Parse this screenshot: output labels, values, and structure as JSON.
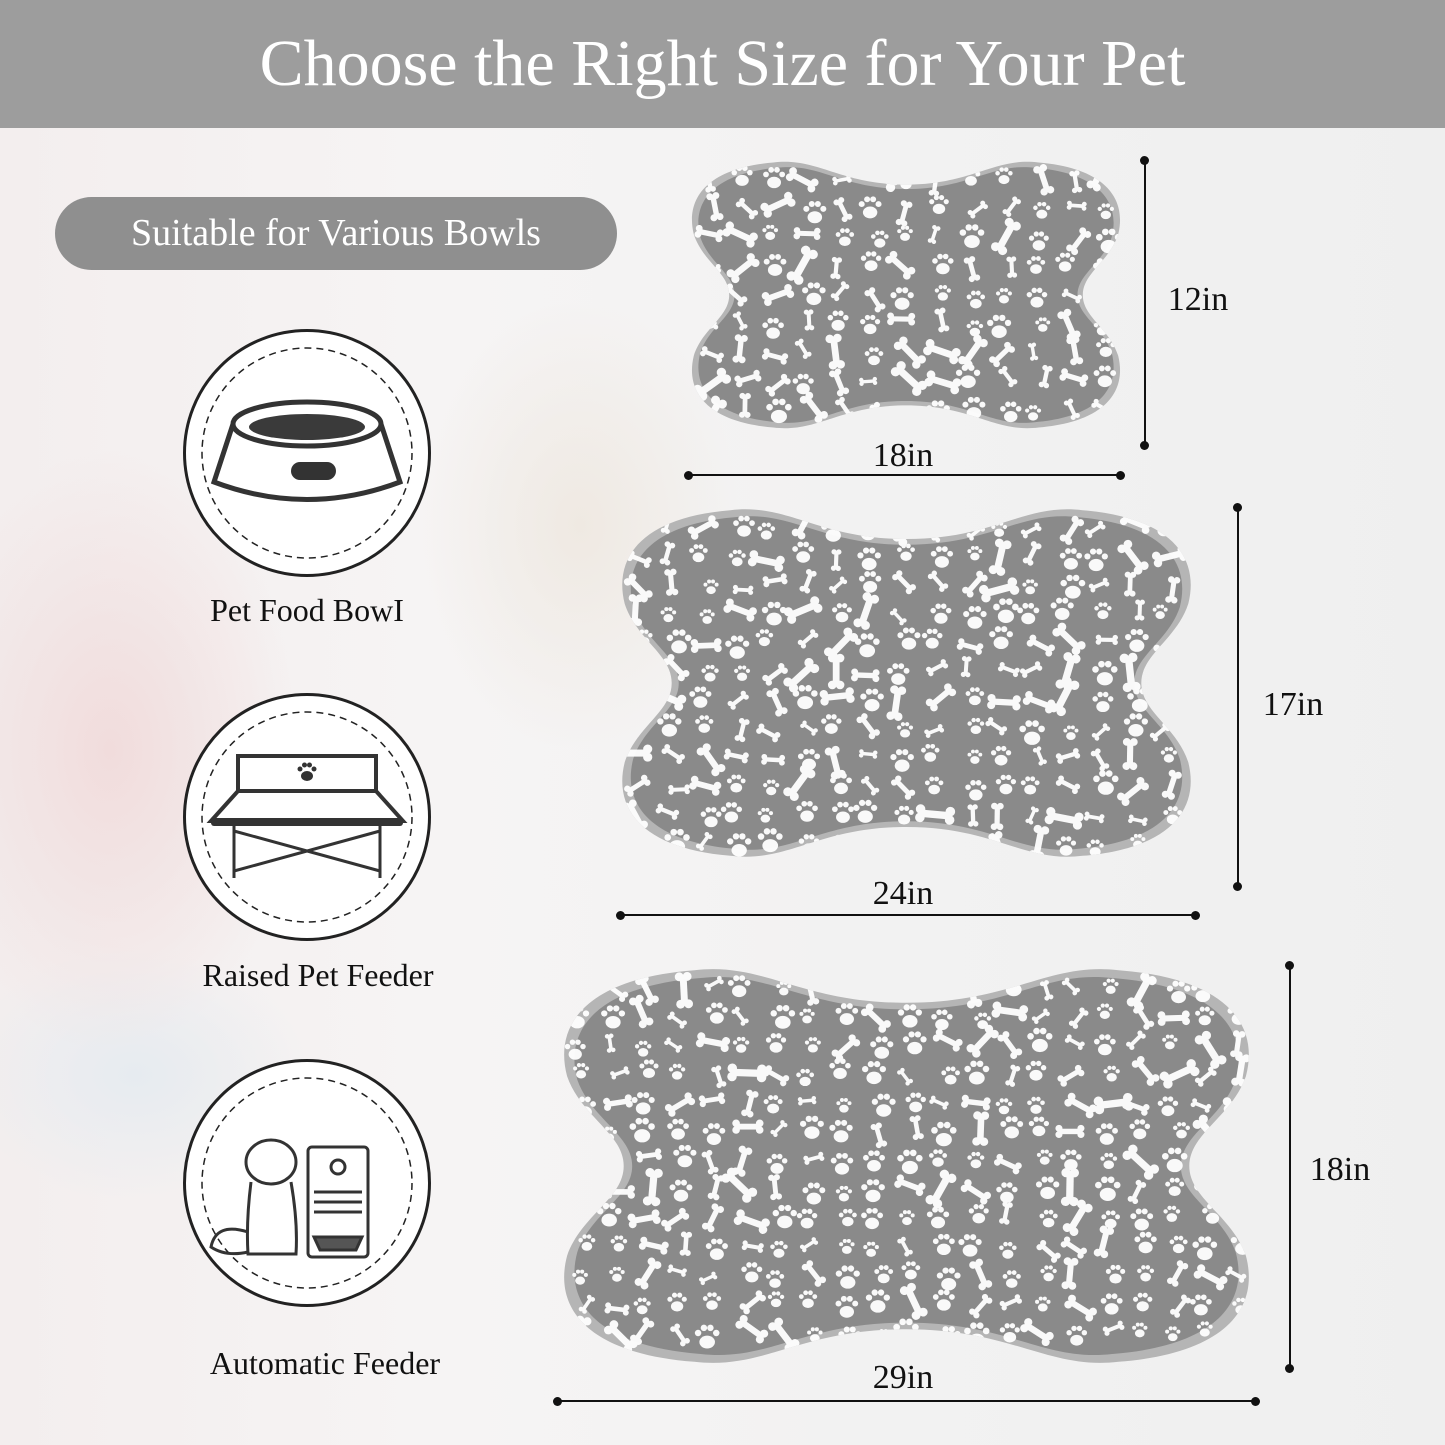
{
  "header": {
    "title": "Choose the Right Size for Your Pet"
  },
  "badge": {
    "text": "Suitable for Various Bowls"
  },
  "bowl_types": [
    {
      "label": "Pet Food BowI",
      "icon": "pet-food-bowl-icon"
    },
    {
      "label": "Raised Pet Feeder",
      "icon": "raised-feeder-icon"
    },
    {
      "label": "Automatic Feeder",
      "icon": "automatic-feeder-icon"
    }
  ],
  "sizes": [
    {
      "width": "18in",
      "height": "12in"
    },
    {
      "width": "24in",
      "height": "17in"
    },
    {
      "width": "29in",
      "height": "18in"
    }
  ],
  "colors": {
    "header": "#9d9d9d",
    "mat": "#8a8a8a",
    "mat_border": "#b5b5b5",
    "pattern": "#ffffff"
  }
}
